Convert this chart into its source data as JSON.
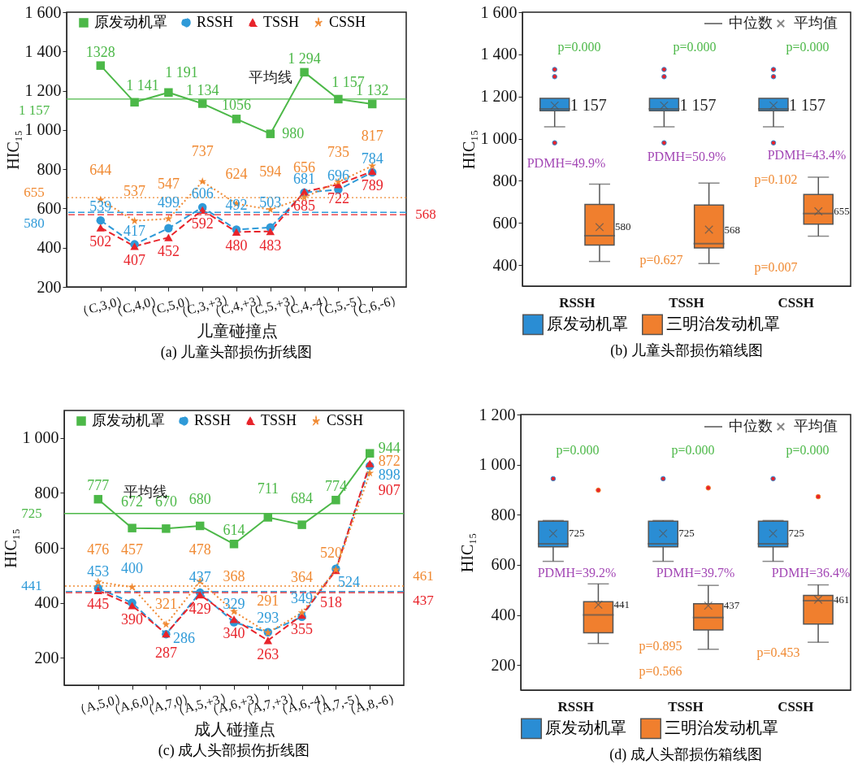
{
  "chart_data": [
    {
      "type": "line",
      "title": "(a) 儿童头部损伤折线图",
      "xlabel": "儿童碰撞点",
      "ylabel": "HIC₁₅",
      "categories": [
        "（C,3,0）",
        "（C,4,0）",
        "（C,5,0）",
        "（C,3,+3）",
        "（C,4,+3）",
        "（C,5,+3）",
        "（C,4,-4）",
        "（C,5,-5）",
        "（C,6,-6）"
      ],
      "ylim": [
        200,
        1600
      ],
      "yticks": [
        200,
        400,
        600,
        800,
        {
          "value": 1000,
          "label": "1 000"
        },
        {
          "value": 1200,
          "label": "1 200"
        },
        {
          "value": 1400,
          "label": "1 400"
        },
        {
          "value": 1600,
          "label": "1 600"
        }
      ],
      "legend": "top",
      "series": [
        {
          "name": "原发动机罩",
          "color": "#4cb848",
          "marker": "square",
          "line_style": "solid",
          "values": [
            1328,
            1141,
            1191,
            1134,
            1056,
            980,
            1294,
            1157,
            1132
          ],
          "value_labels": [
            "1328",
            "1 141",
            "1 191",
            "1 134",
            "1056",
            "980",
            "1 294",
            "1 157",
            "1 132"
          ]
        },
        {
          "name": "RSSH",
          "color": "#2f9ad8",
          "marker": "circle",
          "line_style": "dashed",
          "values": [
            539,
            417,
            499,
            606,
            492,
            503,
            681,
            696,
            784
          ],
          "value_labels": [
            "539",
            "417",
            "499",
            "606",
            "492",
            "503",
            "681",
            "696",
            "784"
          ]
        },
        {
          "name": "TSSH",
          "color": "#e8242b",
          "marker": "triangle",
          "line_style": "dashed",
          "values": [
            502,
            407,
            452,
            592,
            480,
            483,
            685,
            722,
            789
          ],
          "value_labels": [
            "502",
            "407",
            "452",
            "592",
            "480",
            "483",
            "685",
            "722",
            "789"
          ]
        },
        {
          "name": "CSSH",
          "color": "#f08a33",
          "marker": "star",
          "line_style": "dotted",
          "values": [
            644,
            537,
            547,
            737,
            624,
            594,
            656,
            735,
            817
          ],
          "value_labels": [
            "644",
            "537",
            "547",
            "737",
            "624",
            "594",
            "656",
            "735",
            "817"
          ]
        }
      ],
      "ref_lines": [
        {
          "axis": "y",
          "value": 1157,
          "label": "1 157",
          "color": "#4cb848",
          "line_style": "solid"
        },
        {
          "axis": "y",
          "value": 580,
          "label": "580",
          "color": "#2f9ad8",
          "line_style": "dashed"
        },
        {
          "axis": "y",
          "value": 568,
          "label": "568",
          "color": "#e8242b",
          "line_style": "dashed"
        },
        {
          "axis": "y",
          "value": 655,
          "label": "655",
          "color": "#f08a33",
          "line_style": "dotted"
        }
      ],
      "annotations": [
        {
          "text": "平均线",
          "y": 1157
        }
      ]
    },
    {
      "type": "box",
      "title": "(b) 儿童头部损伤箱线图",
      "ylabel": "HIC₁₅",
      "categories": [
        "RSSH",
        "TSSH",
        "CSSH"
      ],
      "ylim": [
        300,
        1600
      ],
      "yticks": [
        400,
        600,
        800,
        {
          "value": 1000,
          "label": "1 000"
        },
        {
          "value": 1200,
          "label": "1 200"
        },
        {
          "value": 1400,
          "label": "1 400"
        },
        {
          "value": 1600,
          "label": "1 600"
        }
      ],
      "legend": "bottom",
      "series": [
        {
          "name": "原发动机罩",
          "color": "#2a8dd4",
          "boxes": [
            {
              "low": 1056,
              "q1": 1132,
              "median": 1141,
              "q3": 1191,
              "high": 1191,
              "mean": 1157,
              "outliers": [
                1328,
                1294,
                980
              ]
            },
            {
              "low": 1056,
              "q1": 1132,
              "median": 1141,
              "q3": 1191,
              "high": 1191,
              "mean": 1157,
              "outliers": [
                1328,
                1294,
                980
              ]
            },
            {
              "low": 1056,
              "q1": 1132,
              "median": 1141,
              "q3": 1191,
              "high": 1191,
              "mean": 1157,
              "outliers": [
                1328,
                1294,
                980
              ]
            }
          ]
        },
        {
          "name": "三明治发动机罩",
          "color": "#f07f2e",
          "boxes": [
            {
              "low": 417,
              "q1": 495,
              "median": 539,
              "q3": 688,
              "high": 784,
              "mean": 580
            },
            {
              "low": 407,
              "q1": 481,
              "median": 502,
              "q3": 685,
              "high": 789,
              "mean": 568
            },
            {
              "low": 537,
              "q1": 594,
              "median": 644,
              "q3": 735,
              "high": 817,
              "mean": 655
            }
          ]
        }
      ],
      "annotations": [
        "p=0.000",
        "p=0.000",
        "p=0.000",
        "PDMH=49.9%",
        "PDMH=50.9%",
        "PDMH=43.4%",
        "p=0.102",
        "p=0.627",
        "p=0.007",
        "中位数",
        "平均值",
        "1 157",
        "1 157",
        "1 157",
        "580",
        "568",
        "655"
      ]
    },
    {
      "type": "line",
      "title": "(c) 成人头部损伤折线图",
      "xlabel": "成人碰撞点",
      "ylabel": "HIC₁₅",
      "categories": [
        "（A,5,0）",
        "（A,6,0）",
        "（A,7,0）",
        "（A,5,+3）",
        "（A,6,+3）",
        "（A,7,+3）",
        "（A,6,-4）",
        "（A,7,-5）",
        "（A,8,-6）"
      ],
      "ylim": [
        100,
        1100
      ],
      "yticks": [
        200,
        400,
        600,
        800,
        {
          "value": 1000,
          "label": "1 000"
        }
      ],
      "legend": "top",
      "series": [
        {
          "name": "原发动机罩",
          "color": "#4cb848",
          "marker": "square",
          "line_style": "solid",
          "values": [
            777,
            672,
            670,
            680,
            614,
            711,
            684,
            774,
            944
          ],
          "value_labels": [
            "777",
            "672",
            "670",
            "680",
            "614",
            "711",
            "684",
            "774",
            "944"
          ]
        },
        {
          "name": "RSSH",
          "color": "#2f9ad8",
          "marker": "circle",
          "line_style": "dashed",
          "values": [
            453,
            400,
            286,
            437,
            329,
            293,
            349,
            524,
            898
          ],
          "value_labels": [
            "453",
            "400",
            "286",
            "437",
            "329",
            "293",
            "349",
            "524",
            "898"
          ]
        },
        {
          "name": "TSSH",
          "color": "#e8242b",
          "marker": "triangle",
          "line_style": "dashed",
          "values": [
            445,
            390,
            287,
            429,
            340,
            263,
            355,
            518,
            907
          ],
          "value_labels": [
            "445",
            "390",
            "287",
            "429",
            "340",
            "263",
            "355",
            "518",
            "907"
          ]
        },
        {
          "name": "CSSH",
          "color": "#f08a33",
          "marker": "star",
          "line_style": "dotted",
          "values": [
            476,
            457,
            321,
            478,
            368,
            291,
            364,
            520,
            872
          ],
          "value_labels": [
            "476",
            "457",
            "321",
            "478",
            "368",
            "291",
            "364",
            "520",
            "872"
          ]
        }
      ],
      "ref_lines": [
        {
          "axis": "y",
          "value": 725,
          "label": "725",
          "color": "#4cb848",
          "line_style": "solid"
        },
        {
          "axis": "y",
          "value": 441,
          "label": "441",
          "color": "#2f9ad8",
          "line_style": "dashed"
        },
        {
          "axis": "y",
          "value": 437,
          "label": "437",
          "color": "#e8242b",
          "line_style": "dashed"
        },
        {
          "axis": "y",
          "value": 461,
          "label": "461",
          "color": "#f08a33",
          "line_style": "dotted"
        }
      ],
      "annotations": [
        {
          "text": "平均线",
          "y": 725
        }
      ]
    },
    {
      "type": "box",
      "title": "(d) 成人头部损伤箱线图",
      "ylabel": "HIC₁₅",
      "categories": [
        "RSSH",
        "TSSH",
        "CSSH"
      ],
      "ylim": [
        100,
        1200
      ],
      "yticks": [
        200,
        400,
        600,
        800,
        {
          "value": 1000,
          "label": "1 000"
        },
        {
          "value": 1200,
          "label": "1 200"
        }
      ],
      "legend": "bottom",
      "series": [
        {
          "name": "原发动机罩",
          "color": "#2a8dd4",
          "boxes": [
            {
              "low": 614,
              "q1": 672,
              "median": 684,
              "q3": 774,
              "high": 777,
              "mean": 725,
              "outliers": [
                944
              ]
            },
            {
              "low": 614,
              "q1": 672,
              "median": 684,
              "q3": 774,
              "high": 777,
              "mean": 725,
              "outliers": [
                944
              ]
            },
            {
              "low": 614,
              "q1": 672,
              "median": 684,
              "q3": 774,
              "high": 777,
              "mean": 725,
              "outliers": [
                944
              ]
            }
          ]
        },
        {
          "name": "三明治发动机罩",
          "color": "#f07f2e",
          "boxes": [
            {
              "low": 286,
              "q1": 329,
              "median": 400,
              "q3": 453,
              "high": 524,
              "mean": 441,
              "outliers": [
                898
              ]
            },
            {
              "low": 263,
              "q1": 340,
              "median": 390,
              "q3": 445,
              "high": 518,
              "mean": 437,
              "outliers": [
                907
              ]
            },
            {
              "low": 291,
              "q1": 364,
              "median": 457,
              "q3": 478,
              "high": 520,
              "mean": 461,
              "outliers": [
                872
              ]
            }
          ]
        }
      ],
      "annotations": [
        "p=0.000",
        "p=0.000",
        "p=0.000",
        "PDMH=39.2%",
        "PDMH=39.7%",
        "PDMH=36.4%",
        "p=0.895",
        "p=0.453",
        "p=0.566",
        "中位数",
        "平均值",
        "725",
        "725",
        "725",
        "441",
        "437",
        "461"
      ]
    }
  ]
}
